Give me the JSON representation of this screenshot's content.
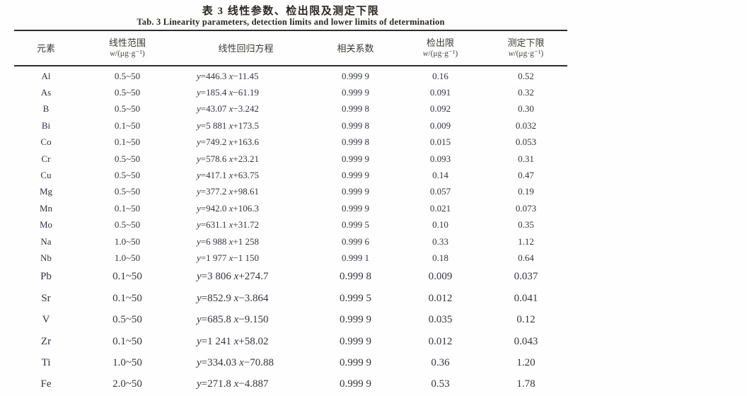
{
  "titles": {
    "cn": "表 3  线性参数、检出限及测定下限",
    "en": "Tab. 3  Linearity parameters, detection limits and lower limits of determination"
  },
  "table": {
    "columns": [
      {
        "label": "元素",
        "sub": ""
      },
      {
        "label": "线性范围",
        "sub": "w/(μg·g⁻¹)"
      },
      {
        "label": "线性回归方程",
        "sub": ""
      },
      {
        "label": "相关系数",
        "sub": ""
      },
      {
        "label": "检出限",
        "sub": "w/(μg·g⁻¹)"
      },
      {
        "label": "测定下限",
        "sub": "w/(μg·g⁻¹)"
      }
    ],
    "rows": [
      {
        "element": "Al",
        "range": "0.5~50",
        "equation": "y=446.3 x−11.45",
        "r": "0.999 9",
        "dl": "0.16",
        "lld": "0.52"
      },
      {
        "element": "As",
        "range": "0.5~50",
        "equation": "y=185.4 x−61.19",
        "r": "0.999 9",
        "dl": "0.091",
        "lld": "0.32"
      },
      {
        "element": "B",
        "range": "0.5~50",
        "equation": "y=43.07 x−3.242",
        "r": "0.999 8",
        "dl": "0.092",
        "lld": "0.30"
      },
      {
        "element": "Bi",
        "range": "0.1~50",
        "equation": "y=5 881 x+173.5",
        "r": "0.999 8",
        "dl": "0.009",
        "lld": "0.032"
      },
      {
        "element": "Co",
        "range": "0.1~50",
        "equation": "y=749.2 x+163.6",
        "r": "0.999 8",
        "dl": "0.015",
        "lld": "0.053"
      },
      {
        "element": "Cr",
        "range": "0.5~50",
        "equation": "y=578.6 x+23.21",
        "r": "0.999 9",
        "dl": "0.093",
        "lld": "0.31"
      },
      {
        "element": "Cu",
        "range": "0.5~50",
        "equation": "y=417.1 x+63.75",
        "r": "0.999 9",
        "dl": "0.14",
        "lld": "0.47"
      },
      {
        "element": "Mg",
        "range": "0.5~50",
        "equation": "y=377.2 x+98.61",
        "r": "0.999 9",
        "dl": "0.057",
        "lld": "0.19"
      },
      {
        "element": "Mn",
        "range": "0.1~50",
        "equation": "y=942.0 x+106.3",
        "r": "0.999 9",
        "dl": "0.021",
        "lld": "0.073"
      },
      {
        "element": "Mo",
        "range": "0.5~50",
        "equation": "y=631.1 x+31.72",
        "r": "0.999 5",
        "dl": "0.10",
        "lld": "0.35"
      },
      {
        "element": "Na",
        "range": "1.0~50",
        "equation": "y=6 988 x+1 258",
        "r": "0.999 6",
        "dl": "0.33",
        "lld": "1.12"
      },
      {
        "element": "Nb",
        "range": "1.0~50",
        "equation": "y=1 977 x−1 150",
        "r": "0.999 1",
        "dl": "0.18",
        "lld": "0.64"
      },
      {
        "element": "Pb",
        "range": "0.1~50",
        "equation": "y=3 806 x+274.7",
        "r": "0.999 8",
        "dl": "0.009",
        "lld": "0.037"
      },
      {
        "element": "Sr",
        "range": "0.1~50",
        "equation": "y=852.9 x−3.864",
        "r": "0.999 5",
        "dl": "0.012",
        "lld": "0.041"
      },
      {
        "element": "V",
        "range": "0.5~50",
        "equation": "y=685.8 x−9.150",
        "r": "0.999 9",
        "dl": "0.035",
        "lld": "0.12"
      },
      {
        "element": "Zr",
        "range": "0.1~50",
        "equation": "y=1 241 x+58.02",
        "r": "0.999 9",
        "dl": "0.012",
        "lld": "0.043"
      },
      {
        "element": "Ti",
        "range": "1.0~50",
        "equation": "y=334.03 x−70.88",
        "r": "0.999 9",
        "dl": "0.36",
        "lld": "1.20"
      },
      {
        "element": "Fe",
        "range": "2.0~50",
        "equation": "y=271.8 x−4.887",
        "r": "0.999 9",
        "dl": "0.53",
        "lld": "1.78"
      }
    ]
  },
  "colors": {
    "text": "#33363c",
    "rule": "#2c2c2c",
    "background": "#fefefe"
  }
}
